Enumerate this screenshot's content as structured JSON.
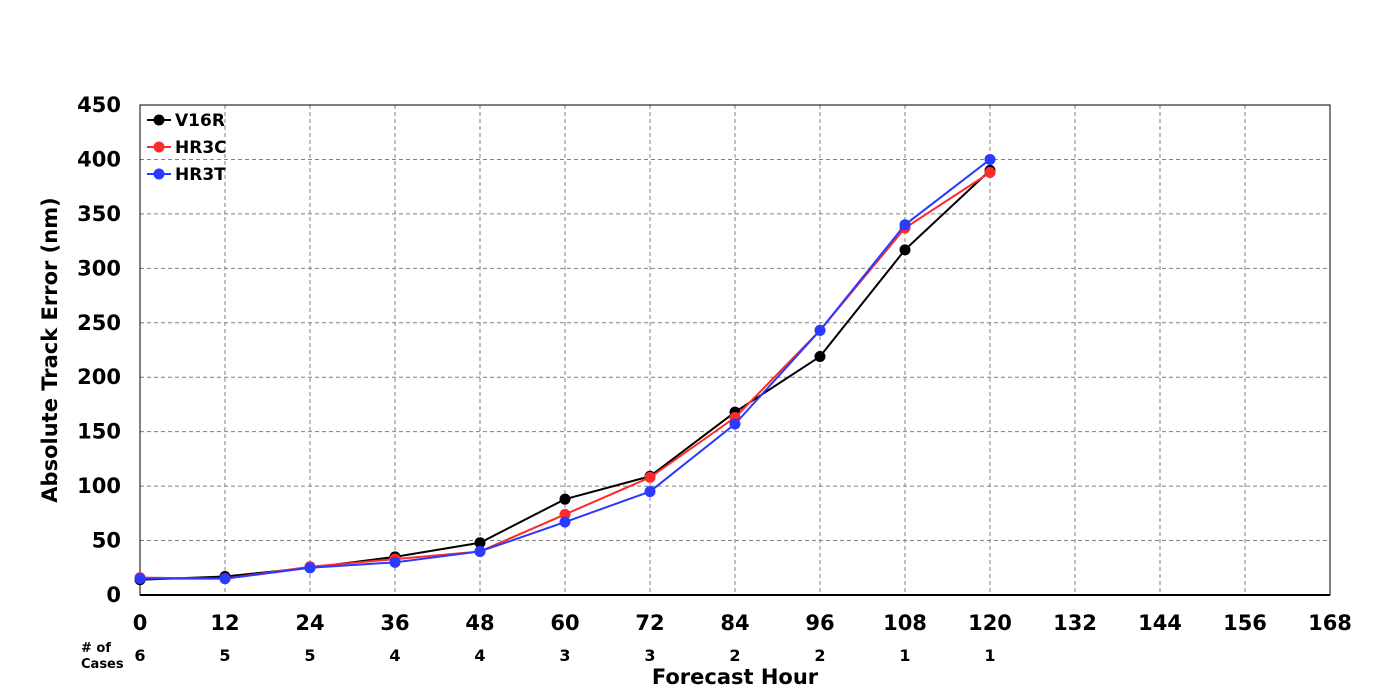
{
  "chart_data": {
    "type": "line",
    "title": "",
    "xlabel": "Forecast Hour",
    "ylabel": "Absolute Track Error (nm)",
    "xlim": [
      0,
      168
    ],
    "ylim": [
      0,
      450
    ],
    "x_ticks": [
      0,
      12,
      24,
      36,
      48,
      60,
      72,
      84,
      96,
      108,
      120,
      132,
      144,
      156,
      168
    ],
    "y_ticks": [
      0,
      50,
      100,
      150,
      200,
      250,
      300,
      350,
      400,
      450
    ],
    "grid": true,
    "legend_position": "top-left",
    "cases_label": [
      "# of",
      "Cases"
    ],
    "cases": [
      {
        "x": 0,
        "n": "6"
      },
      {
        "x": 12,
        "n": "5"
      },
      {
        "x": 24,
        "n": "5"
      },
      {
        "x": 36,
        "n": "4"
      },
      {
        "x": 48,
        "n": "4"
      },
      {
        "x": 60,
        "n": "3"
      },
      {
        "x": 72,
        "n": "3"
      },
      {
        "x": 84,
        "n": "2"
      },
      {
        "x": 96,
        "n": "2"
      },
      {
        "x": 108,
        "n": "1"
      },
      {
        "x": 120,
        "n": "1"
      }
    ],
    "series": [
      {
        "name": "V16R",
        "color": "#000000",
        "x": [
          0,
          12,
          24,
          36,
          48,
          60,
          72,
          84,
          96,
          108,
          120
        ],
        "y": [
          14,
          17,
          25,
          35,
          48,
          88,
          109,
          168,
          219,
          317,
          390
        ]
      },
      {
        "name": "HR3C",
        "color": "#ff2a2a",
        "x": [
          0,
          12,
          24,
          36,
          48,
          60,
          72,
          84,
          96,
          108,
          120
        ],
        "y": [
          16,
          15,
          26,
          33,
          40,
          74,
          108,
          163,
          243,
          337,
          388
        ]
      },
      {
        "name": "HR3T",
        "color": "#2a3aff",
        "x": [
          0,
          12,
          24,
          36,
          48,
          60,
          72,
          84,
          96,
          108,
          120
        ],
        "y": [
          15,
          15,
          25,
          30,
          40,
          67,
          95,
          157,
          243,
          340,
          400
        ]
      }
    ]
  }
}
